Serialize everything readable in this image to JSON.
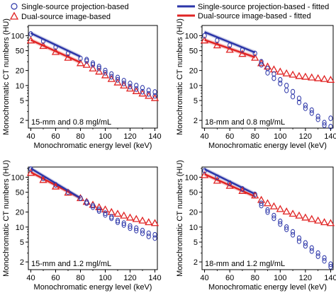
{
  "legend": [
    {
      "label": "Single-source projection-based",
      "marker": "circle",
      "color": "#2b35a8"
    },
    {
      "label": "Dual-source image-based",
      "marker": "triangle",
      "color": "#e02424"
    },
    {
      "label": "Single-source projection-based - fitted",
      "marker": "line",
      "color": "#2b35a8"
    },
    {
      "label": "Dual-source image-based - fitted",
      "marker": "line",
      "color": "#e02424"
    }
  ],
  "colors": {
    "single": "#2b35a8",
    "dual": "#e02424",
    "single_band": "#b9bde0",
    "dual_band": "#f2b4b4"
  },
  "chart_data": [
    {
      "type": "scatter",
      "annotation": "15-mm and 0.8 mgl/mL",
      "xlabel": "Monochromatic energy level (keV)",
      "ylabel": "Monochromatic CT numbers (HU)",
      "yscale": "log",
      "xticks": [
        40,
        60,
        80,
        100,
        120,
        140
      ],
      "xminor": [
        50,
        70,
        90,
        110,
        130
      ],
      "yticks": [
        {
          "v": 100,
          "label": "100"
        },
        {
          "v": 50,
          "label": "50"
        },
        {
          "v": 20,
          "label": "20"
        },
        {
          "v": 10,
          "label": "10"
        },
        {
          "v": 5,
          "label": "5"
        },
        {
          "v": 2,
          "label": "2"
        }
      ],
      "series": [
        {
          "name": "Single-source projection-based",
          "points": [
            [
              40,
              108
            ],
            [
              50,
              78
            ],
            [
              60,
              59
            ],
            [
              70,
              44
            ],
            [
              80,
              35
            ],
            [
              85,
              31
            ],
            [
              90,
              26
            ],
            [
              95,
              22
            ],
            [
              100,
              18
            ],
            [
              105,
              15
            ],
            [
              110,
              13
            ],
            [
              115,
              11
            ],
            [
              120,
              9.5
            ],
            [
              125,
              8.5
            ],
            [
              130,
              7.5
            ],
            [
              135,
              6.8
            ],
            [
              140,
              6.2
            ],
            [
              85,
              33
            ],
            [
              90,
              28
            ],
            [
              95,
              24
            ],
            [
              100,
              20
            ],
            [
              105,
              17
            ],
            [
              110,
              14.5
            ],
            [
              115,
              12.5
            ],
            [
              120,
              11
            ],
            [
              125,
              10
            ],
            [
              130,
              9
            ],
            [
              135,
              8
            ],
            [
              140,
              7.4
            ]
          ]
        },
        {
          "name": "Dual-source image-based",
          "points": [
            [
              40,
              80
            ],
            [
              50,
              62
            ],
            [
              60,
              47
            ],
            [
              70,
              36
            ],
            [
              80,
              28
            ],
            [
              85,
              26
            ],
            [
              90,
              22
            ],
            [
              95,
              19
            ],
            [
              100,
              16
            ],
            [
              105,
              13.5
            ],
            [
              110,
              11.5
            ],
            [
              115,
              10
            ],
            [
              120,
              8.7
            ],
            [
              125,
              7.7
            ],
            [
              130,
              6.9
            ],
            [
              135,
              6.2
            ],
            [
              140,
              5.6
            ]
          ]
        },
        {
          "name": "Single-source projection-based - fitted",
          "line": [
            [
              40,
              112
            ],
            [
              80,
              38
            ]
          ]
        },
        {
          "name": "Dual-source image-based - fitted",
          "line": [
            [
              40,
              82
            ],
            [
              80,
              29
            ]
          ]
        }
      ]
    },
    {
      "type": "scatter",
      "annotation": "18-mm and 0.8 mgl/mL",
      "xlabel": "Monochromatic energy level (keV)",
      "ylabel": "Monochromatic CT numbers (HU)",
      "yscale": "log",
      "xticks": [
        40,
        60,
        80,
        100,
        120,
        140
      ],
      "xminor": [
        50,
        70,
        90,
        110,
        130
      ],
      "yticks": [
        {
          "v": 100,
          "label": "100"
        },
        {
          "v": 50,
          "label": "50"
        },
        {
          "v": 20,
          "label": "20"
        },
        {
          "v": 10,
          "label": "10"
        },
        {
          "v": 5,
          "label": "5"
        },
        {
          "v": 2,
          "label": "2"
        }
      ],
      "series": [
        {
          "name": "Single-source projection-based",
          "points": [
            [
              40,
              100
            ],
            [
              50,
              80
            ],
            [
              60,
              64
            ],
            [
              70,
              52
            ],
            [
              80,
              44
            ],
            [
              85,
              30
            ],
            [
              90,
              22
            ],
            [
              95,
              17
            ],
            [
              100,
              13
            ],
            [
              105,
              10
            ],
            [
              110,
              7.5
            ],
            [
              115,
              5.5
            ],
            [
              120,
              4
            ],
            [
              125,
              3.2
            ],
            [
              130,
              2.4
            ],
            [
              135,
              1.8
            ],
            [
              140,
              1.5
            ],
            [
              85,
              26
            ],
            [
              90,
              18
            ],
            [
              95,
              14
            ],
            [
              100,
              11
            ],
            [
              105,
              8
            ],
            [
              110,
              6
            ],
            [
              115,
              4.6
            ],
            [
              120,
              3.5
            ],
            [
              125,
              2.8
            ],
            [
              130,
              2.1
            ],
            [
              135,
              1.6
            ],
            [
              140,
              2.2
            ]
          ]
        },
        {
          "name": "Dual-source image-based",
          "points": [
            [
              40,
              80
            ],
            [
              50,
              64
            ],
            [
              60,
              52
            ],
            [
              70,
              43
            ],
            [
              80,
              36
            ],
            [
              85,
              28
            ],
            [
              90,
              24
            ],
            [
              95,
              21
            ],
            [
              100,
              19
            ],
            [
              105,
              17.5
            ],
            [
              110,
              16.5
            ],
            [
              115,
              15.5
            ],
            [
              120,
              15
            ],
            [
              125,
              14.5
            ],
            [
              130,
              14
            ],
            [
              135,
              13.5
            ],
            [
              140,
              13
            ]
          ]
        },
        {
          "name": "Single-source projection-based - fitted",
          "line": [
            [
              40,
              118
            ],
            [
              80,
              46
            ]
          ]
        },
        {
          "name": "Dual-source image-based - fitted",
          "line": [
            [
              40,
              82
            ],
            [
              80,
              37
            ]
          ]
        }
      ]
    },
    {
      "type": "scatter",
      "annotation": "15-mm and 1.2 mgl/mL",
      "xlabel": "Monochromatic energy level (keV)",
      "ylabel": "Monochromatic CT numbers (HU)",
      "yscale": "log",
      "xticks": [
        40,
        60,
        80,
        100,
        120,
        140
      ],
      "xminor": [
        50,
        70,
        90,
        110,
        130
      ],
      "yticks": [
        {
          "v": 100,
          "label": "100"
        },
        {
          "v": 50,
          "label": "50"
        },
        {
          "v": 20,
          "label": "20"
        },
        {
          "v": 10,
          "label": "10"
        },
        {
          "v": 5,
          "label": "5"
        },
        {
          "v": 2,
          "label": "2"
        }
      ],
      "series": [
        {
          "name": "Single-source projection-based",
          "points": [
            [
              40,
              145
            ],
            [
              50,
              95
            ],
            [
              60,
              70
            ],
            [
              70,
              50
            ],
            [
              80,
              38
            ],
            [
              85,
              30
            ],
            [
              90,
              25
            ],
            [
              95,
              21
            ],
            [
              100,
              17.5
            ],
            [
              105,
              15
            ],
            [
              110,
              12.5
            ],
            [
              115,
              11
            ],
            [
              120,
              9.5
            ],
            [
              125,
              8.5
            ],
            [
              130,
              7.5
            ],
            [
              135,
              6.5
            ],
            [
              140,
              6
            ],
            [
              85,
              32
            ],
            [
              90,
              27
            ],
            [
              95,
              22.5
            ],
            [
              100,
              19
            ],
            [
              105,
              16
            ],
            [
              110,
              13.5
            ],
            [
              115,
              12
            ],
            [
              120,
              10.5
            ],
            [
              125,
              9.5
            ],
            [
              130,
              8.5
            ],
            [
              135,
              7.5
            ],
            [
              140,
              7
            ]
          ]
        },
        {
          "name": "Dual-source image-based",
          "points": [
            [
              40,
              122
            ],
            [
              50,
              88
            ],
            [
              60,
              65
            ],
            [
              70,
              49
            ],
            [
              80,
              38
            ],
            [
              85,
              32
            ],
            [
              90,
              28
            ],
            [
              95,
              25
            ],
            [
              100,
              22.5
            ],
            [
              105,
              20
            ],
            [
              110,
              18.5
            ],
            [
              115,
              17
            ],
            [
              120,
              15.5
            ],
            [
              125,
              14.5
            ],
            [
              130,
              13.5
            ],
            [
              135,
              12.5
            ],
            [
              140,
              12
            ]
          ]
        },
        {
          "name": "Single-source projection-based - fitted",
          "line": [
            [
              40,
              150
            ],
            [
              80,
              38
            ]
          ]
        },
        {
          "name": "Dual-source image-based - fitted",
          "line": [
            [
              40,
              126
            ],
            [
              80,
              38
            ]
          ]
        }
      ]
    },
    {
      "type": "scatter",
      "annotation": "18-mm and 1.2 mgl/mL",
      "xlabel": "Monochromatic energy level (keV)",
      "ylabel": "Monochromatic CT numbers (HU)",
      "yscale": "log",
      "xticks": [
        40,
        60,
        80,
        100,
        120,
        140
      ],
      "xminor": [
        50,
        70,
        90,
        110,
        130
      ],
      "yticks": [
        {
          "v": 100,
          "label": "100"
        },
        {
          "v": 50,
          "label": "50"
        },
        {
          "v": 20,
          "label": "20"
        },
        {
          "v": 10,
          "label": "10"
        },
        {
          "v": 5,
          "label": "5"
        },
        {
          "v": 2,
          "label": "2"
        }
      ],
      "series": [
        {
          "name": "Single-source projection-based",
          "points": [
            [
              40,
              135
            ],
            [
              50,
              100
            ],
            [
              60,
              76
            ],
            [
              70,
              58
            ],
            [
              80,
              45
            ],
            [
              85,
              30
            ],
            [
              90,
              22
            ],
            [
              95,
              17
            ],
            [
              100,
              13
            ],
            [
              105,
              10
            ],
            [
              110,
              8
            ],
            [
              115,
              6
            ],
            [
              120,
              4.8
            ],
            [
              125,
              3.8
            ],
            [
              130,
              3
            ],
            [
              135,
              2.4
            ],
            [
              140,
              1.8
            ],
            [
              85,
              27
            ],
            [
              90,
              20
            ],
            [
              95,
              15
            ],
            [
              100,
              11.5
            ],
            [
              105,
              9
            ],
            [
              110,
              7
            ],
            [
              115,
              5.2
            ],
            [
              120,
              4.2
            ],
            [
              125,
              3.3
            ],
            [
              130,
              2.6
            ],
            [
              135,
              2.1
            ],
            [
              140,
              1.6
            ]
          ]
        },
        {
          "name": "Dual-source image-based",
          "points": [
            [
              40,
              110
            ],
            [
              50,
              85
            ],
            [
              60,
              67
            ],
            [
              70,
              53
            ],
            [
              80,
              43
            ],
            [
              85,
              35
            ],
            [
              90,
              30
            ],
            [
              95,
              26
            ],
            [
              100,
              23
            ],
            [
              105,
              20.5
            ],
            [
              110,
              18.5
            ],
            [
              115,
              17
            ],
            [
              120,
              15.5
            ],
            [
              125,
              14.5
            ],
            [
              130,
              13.5
            ],
            [
              135,
              12.5
            ],
            [
              140,
              12
            ]
          ]
        },
        {
          "name": "Single-source projection-based - fitted",
          "line": [
            [
              40,
              145
            ],
            [
              80,
              46
            ]
          ]
        },
        {
          "name": "Dual-source image-based - fitted",
          "line": [
            [
              40,
              115
            ],
            [
              80,
              41
            ]
          ]
        }
      ]
    }
  ]
}
